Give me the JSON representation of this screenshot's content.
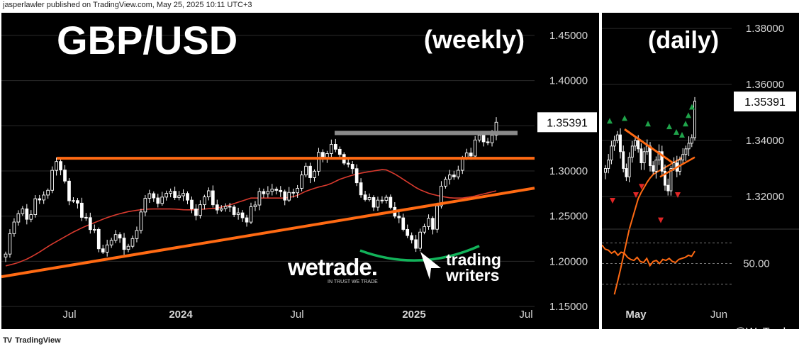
{
  "header": {
    "publisher_line": "jasperlawler published on TradingView.com, May 25, 2025 10:11 UTC+3"
  },
  "footer": {
    "brand": "TradingView",
    "watermark": "@WeTrade"
  },
  "logos": {
    "wetrade": "wetrade.",
    "wetrade_tagline": "IN TRUST WE TRADE",
    "tw_line1": "trading",
    "tw_line2": "writers"
  },
  "colors": {
    "up": "#ffffff",
    "down": "#ffffff",
    "orange": "#ff6a13",
    "ma": "#d93a2e",
    "green_arc": "#12b35a",
    "resistance_box": "#8a8a8a",
    "up_arrow": "#1fa34a",
    "down_arrow": "#e02626",
    "grid": "#2a2a2a"
  },
  "chart_data": [
    {
      "type": "candlestick",
      "title": "GBP/USD",
      "subtitle": "(weekly)",
      "x_tick_labels": [
        "Jul",
        "2024",
        "Jul",
        "2025",
        "Jul"
      ],
      "y_tick_labels": [
        "1.45000",
        "1.40000",
        "1.35000",
        "1.30000",
        "1.25000",
        "1.20000",
        "1.15000"
      ],
      "ylim": [
        1.125,
        1.475
      ],
      "last_price": "1.35391",
      "horizontal_levels": [
        1.314,
        1.342
      ],
      "trendline": {
        "start": 1.183,
        "end": 1.281
      },
      "close_path": [
        1.208,
        1.232,
        1.245,
        1.262,
        1.255,
        1.24,
        1.262,
        1.268,
        1.272,
        1.278,
        1.29,
        1.31,
        1.298,
        1.285,
        1.272,
        1.265,
        1.258,
        1.25,
        1.243,
        1.237,
        1.225,
        1.21,
        1.215,
        1.222,
        1.232,
        1.226,
        1.218,
        1.215,
        1.22,
        1.24,
        1.262,
        1.268,
        1.272,
        1.266,
        1.272,
        1.27,
        1.274,
        1.276,
        1.274,
        1.27,
        1.263,
        1.258,
        1.252,
        1.265,
        1.28,
        1.27,
        1.262,
        1.256,
        1.258,
        1.262,
        1.256,
        1.25,
        1.242,
        1.247,
        1.258,
        1.268,
        1.272,
        1.275,
        1.28,
        1.278,
        1.28,
        1.275,
        1.272,
        1.276,
        1.282,
        1.29,
        1.3,
        1.295,
        1.305,
        1.322,
        1.314,
        1.318,
        1.33,
        1.318,
        1.316,
        1.31,
        1.305,
        1.295,
        1.28,
        1.262,
        1.27,
        1.258,
        1.264,
        1.27,
        1.266,
        1.258,
        1.25,
        1.245,
        1.237,
        1.222,
        1.215,
        1.225,
        1.235,
        1.245,
        1.24,
        1.26,
        1.28,
        1.292,
        1.296,
        1.29,
        1.305,
        1.312,
        1.318,
        1.328,
        1.335,
        1.334,
        1.336,
        1.332,
        1.354
      ],
      "ma_path": [
        1.195,
        1.198,
        1.203,
        1.21,
        1.218,
        1.225,
        1.232,
        1.238,
        1.243,
        1.248,
        1.252,
        1.255,
        1.257,
        1.258,
        1.258,
        1.258,
        1.257,
        1.257,
        1.258,
        1.259,
        1.262,
        1.266,
        1.27,
        1.27,
        1.27,
        1.27,
        1.272,
        1.278,
        1.282,
        1.285,
        1.291,
        1.295,
        1.298,
        1.3,
        1.302,
        1.296,
        1.288,
        1.28,
        1.275,
        1.272,
        1.27,
        1.27,
        1.272,
        1.275,
        1.278
      ],
      "arc": {
        "left": 1.212,
        "bottom": 1.205,
        "right": 1.217
      }
    },
    {
      "type": "candlestick",
      "subtitle": "(daily)",
      "x_tick_labels": [
        "May",
        "Jun"
      ],
      "y_tick_labels": [
        "1.38000",
        "1.36000",
        "1.34000",
        "1.32000"
      ],
      "ylim": [
        1.3096,
        1.3856
      ],
      "last_price": "1.35391",
      "close_path": [
        1.33,
        1.333,
        1.338,
        1.34,
        1.342,
        1.336,
        1.33,
        1.327,
        1.334,
        1.338,
        1.34,
        1.337,
        1.332,
        1.336,
        1.338,
        1.331,
        1.329,
        1.333,
        1.336,
        1.329,
        1.324,
        1.322,
        1.33,
        1.332,
        1.329,
        1.333,
        1.335,
        1.337,
        1.339,
        1.341,
        1.354
      ],
      "ma_path": [
        1.285,
        1.292,
        1.3,
        1.308,
        1.314,
        1.32,
        1.323,
        1.326,
        1.328,
        1.329,
        1.33,
        1.331,
        1.332,
        1.333,
        1.334
      ],
      "triangle_upper": {
        "start": 1.344,
        "end": 1.332
      },
      "triangle_lower": {
        "start": 1.327,
        "end": 1.334
      },
      "up_arrow_prices": [
        1.345,
        1.346,
        1.344,
        1.343,
        1.341,
        1.34,
        1.344,
        1.347,
        1.35
      ],
      "down_arrow_prices": [
        1.32,
        1.322,
        1.325,
        1.313,
        1.322
      ],
      "indicator": {
        "y_tick_label": "50.00",
        "ylim": [
          20,
          80
        ],
        "levels": [
          30,
          50,
          70
        ],
        "values": [
          68,
          64,
          63,
          60,
          62,
          58,
          61,
          60,
          56,
          54,
          53,
          56,
          52,
          51,
          55,
          48,
          52,
          53,
          50,
          54,
          53,
          55,
          52,
          51,
          54,
          55,
          56,
          58,
          57,
          62
        ]
      }
    }
  ]
}
